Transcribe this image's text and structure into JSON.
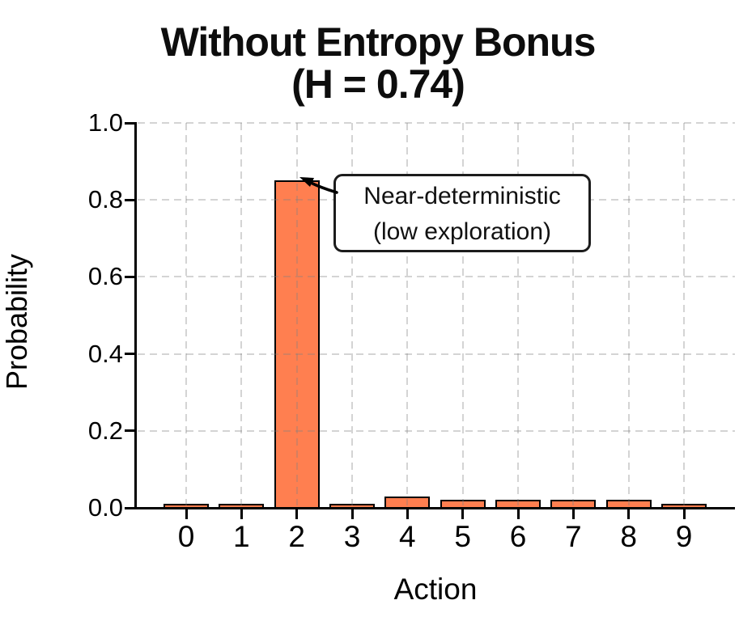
{
  "chart_data": {
    "type": "bar",
    "title_line1": "Without Entropy Bonus",
    "title_line2": "(H = 0.74)",
    "xlabel": "Action",
    "ylabel": "Probability",
    "categories": [
      "0",
      "1",
      "2",
      "3",
      "4",
      "5",
      "6",
      "7",
      "8",
      "9"
    ],
    "values": [
      0.01,
      0.01,
      0.85,
      0.01,
      0.03,
      0.02,
      0.02,
      0.02,
      0.02,
      0.01
    ],
    "ylim": [
      0.0,
      1.0
    ],
    "yticks": [
      {
        "value": 0.0,
        "label": "0.0"
      },
      {
        "value": 0.2,
        "label": "0.2"
      },
      {
        "value": 0.4,
        "label": "0.4"
      },
      {
        "value": 0.6,
        "label": "0.6"
      },
      {
        "value": 0.8,
        "label": "0.8"
      },
      {
        "value": 1.0,
        "label": "1.0"
      }
    ],
    "grid": {
      "style": "dashed",
      "axes": "both",
      "color": "#dcdcdc"
    },
    "legend": "none",
    "colors": {
      "bar_fill": "#FF7F50",
      "bar_edge": "#000000",
      "spine": "#000000",
      "title_text": "#0d0d0d",
      "annotation_border": "#1c1c1c",
      "annotation_bg": "#ffffff"
    },
    "annotation": {
      "line1": "Near-deterministic",
      "line2": "(low exploration)",
      "target_category": "2",
      "target_value": 0.85
    }
  }
}
